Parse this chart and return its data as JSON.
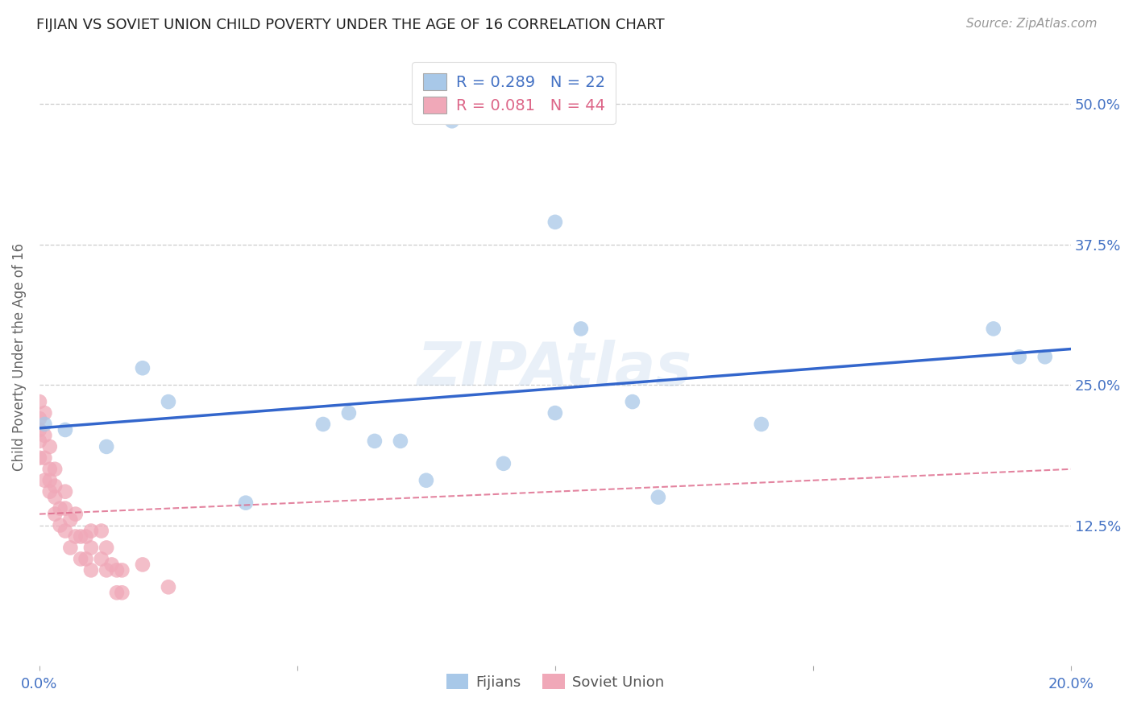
{
  "title": "FIJIAN VS SOVIET UNION CHILD POVERTY UNDER THE AGE OF 16 CORRELATION CHART",
  "source": "Source: ZipAtlas.com",
  "tick_color": "#4472c4",
  "ylabel": "Child Poverty Under the Age of 16",
  "ylabel_color": "#666666",
  "xlim": [
    0.0,
    0.2
  ],
  "ylim": [
    0.0,
    0.55
  ],
  "xticks": [
    0.0,
    0.05,
    0.1,
    0.15,
    0.2
  ],
  "xtick_labels": [
    "0.0%",
    "",
    "",
    "",
    "20.0%"
  ],
  "ytick_labels_right": [
    "50.0%",
    "37.5%",
    "25.0%",
    "12.5%"
  ],
  "ytick_values_right": [
    0.5,
    0.375,
    0.25,
    0.125
  ],
  "background_color": "#ffffff",
  "fijian_color": "#a8c8e8",
  "soviet_color": "#f0a8b8",
  "fijian_line_color": "#3366cc",
  "soviet_line_color": "#dd6688",
  "fijian_R": "0.289",
  "fijian_N": "22",
  "soviet_R": "0.081",
  "soviet_N": "44",
  "legend_label_fijian": "Fijians",
  "legend_label_soviet": "Soviet Union",
  "watermark": "ZIPAtlas",
  "fijian_x": [
    0.001,
    0.005,
    0.013,
    0.02,
    0.025,
    0.04,
    0.055,
    0.06,
    0.065,
    0.07,
    0.075,
    0.09,
    0.1,
    0.105,
    0.115,
    0.12,
    0.14,
    0.185,
    0.19,
    0.08,
    0.1,
    0.195
  ],
  "fijian_y": [
    0.215,
    0.21,
    0.195,
    0.265,
    0.235,
    0.145,
    0.215,
    0.225,
    0.2,
    0.2,
    0.165,
    0.18,
    0.225,
    0.3,
    0.235,
    0.15,
    0.215,
    0.3,
    0.275,
    0.485,
    0.395,
    0.275
  ],
  "soviet_x": [
    0.0,
    0.0,
    0.0,
    0.0,
    0.0,
    0.001,
    0.001,
    0.001,
    0.001,
    0.002,
    0.002,
    0.002,
    0.002,
    0.003,
    0.003,
    0.003,
    0.003,
    0.004,
    0.004,
    0.005,
    0.005,
    0.005,
    0.006,
    0.006,
    0.007,
    0.007,
    0.008,
    0.008,
    0.009,
    0.009,
    0.01,
    0.01,
    0.01,
    0.012,
    0.012,
    0.013,
    0.013,
    0.014,
    0.015,
    0.015,
    0.016,
    0.016,
    0.02,
    0.025
  ],
  "soviet_y": [
    0.235,
    0.22,
    0.21,
    0.2,
    0.185,
    0.225,
    0.205,
    0.185,
    0.165,
    0.195,
    0.175,
    0.165,
    0.155,
    0.175,
    0.16,
    0.15,
    0.135,
    0.14,
    0.125,
    0.155,
    0.14,
    0.12,
    0.13,
    0.105,
    0.135,
    0.115,
    0.115,
    0.095,
    0.115,
    0.095,
    0.12,
    0.105,
    0.085,
    0.12,
    0.095,
    0.105,
    0.085,
    0.09,
    0.085,
    0.065,
    0.085,
    0.065,
    0.09,
    0.07
  ]
}
